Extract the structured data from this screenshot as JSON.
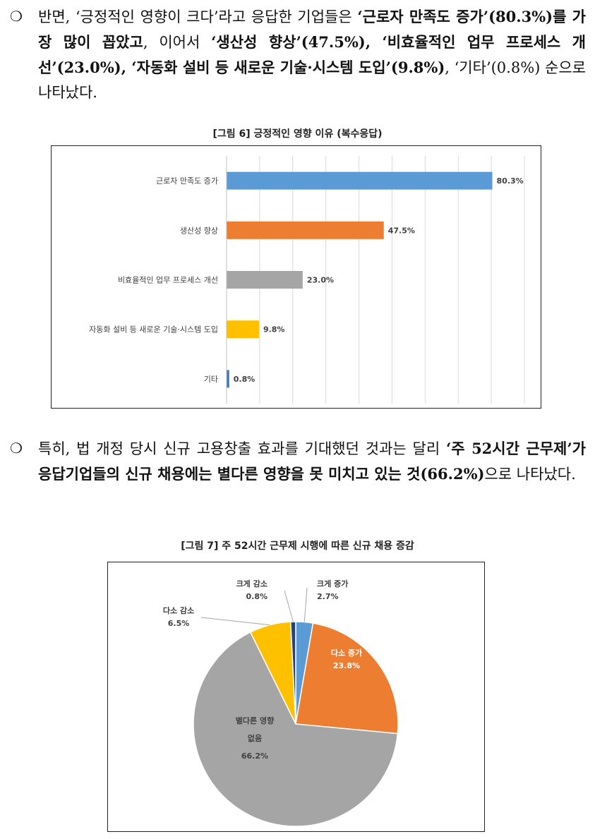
{
  "bullet_symbol": "❍",
  "para1": [
    {
      "t": "반면, ‘긍정적인 영향이 크다’라고 응답한 기업들은 ",
      "b": false
    },
    {
      "t": "‘근로자 만족도 증가’(80.3%)를 가장 많이 꼽았고",
      "b": true
    },
    {
      "t": ", 이어서 ",
      "b": false
    },
    {
      "t": "‘생산성 향상’(47.5%), ‘비효율적인 업무 프로세스 개선’(23.0%), ‘자동화 설비 등 새로운 기술·시스템 도입’(9.8%)",
      "b": true
    },
    {
      "t": ", ‘기타’(0.8%) 순으로 나타났다.",
      "b": false
    }
  ],
  "fig6_title": "[그림 6] 긍정적인 영향 이유 (복수응답)",
  "para2": [
    {
      "t": "특히, 법 개정 당시 신규 고용창출 효과를 기대했던 것과는 달리 ",
      "b": false
    },
    {
      "t": "‘주 52시간 근무제’가 응답기업들의 신규 채용에는 별다른 영향을 못 미치고 있는 것(66.2%)",
      "b": true
    },
    {
      "t": "으로 나타났다.",
      "b": false
    }
  ],
  "fig7_title": "[그림 7] 주 52시간 근무제 시행에 따른 신규 채용 증감",
  "chart_data": [
    {
      "type": "bar",
      "orientation": "horizontal",
      "categories": [
        "근로자 만족도 증가",
        "생산성 향상",
        "비효율적인 업무 프로세스 개선",
        "자동화 설비 등 새로운 기술·시스템 도입",
        "기타"
      ],
      "values": [
        80.3,
        47.5,
        23.0,
        9.8,
        0.8
      ],
      "value_labels": [
        "80.3%",
        "47.5%",
        "23.0%",
        "9.8%",
        "0.8%"
      ],
      "colors": [
        "#5B9BD5",
        "#ED7D31",
        "#A5A5A5",
        "#FFC000",
        "#4472C4"
      ],
      "xlim": [
        0,
        90
      ],
      "grid": true,
      "legend": "none"
    },
    {
      "type": "pie",
      "categories": [
        "크게 증가",
        "다소 증가",
        "별다른 영향 없음",
        "다소 감소",
        "크게 감소"
      ],
      "label_lines": [
        [
          "크게 증가"
        ],
        [
          "다소 증가"
        ],
        [
          "별다른 영향",
          "없음"
        ],
        [
          "다소 감소"
        ],
        [
          "크게 감소"
        ]
      ],
      "values": [
        2.7,
        23.8,
        66.2,
        6.5,
        0.8
      ],
      "value_labels": [
        "2.7%",
        "23.8%",
        "66.2%",
        "6.5%",
        "0.8%"
      ],
      "colors": [
        "#5B9BD5",
        "#ED7D31",
        "#A5A5A5",
        "#FFC000",
        "#264478"
      ],
      "start_angle": "12 o'clock, clockwise",
      "legend": "none"
    }
  ]
}
